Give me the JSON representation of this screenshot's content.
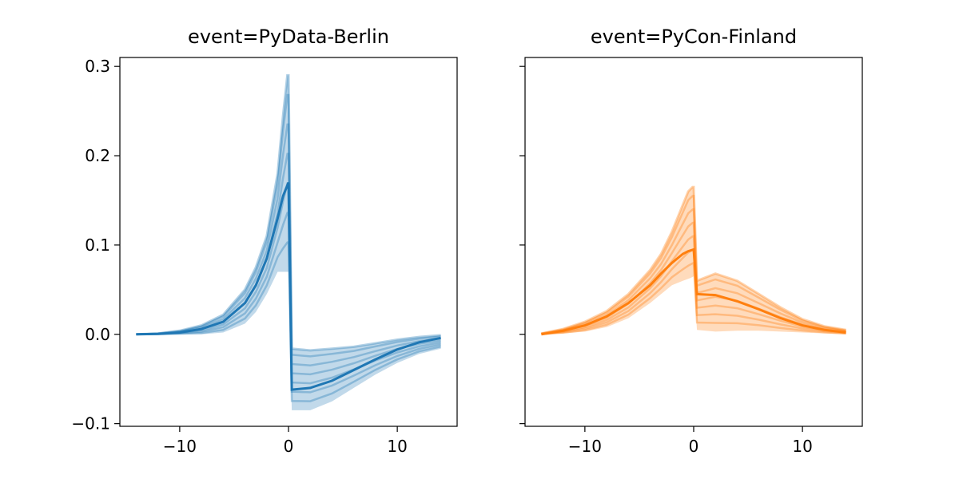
{
  "chart_data": [
    {
      "type": "line",
      "title": "event=PyData-Berlin",
      "xlabel": "",
      "ylabel": "",
      "xlim": [
        -15.5,
        15.5
      ],
      "ylim": [
        -0.103,
        0.31
      ],
      "xticks": [
        -10,
        0,
        10
      ],
      "xtick_labels": [
        "−10",
        "0",
        "10"
      ],
      "yticks": [
        -0.1,
        0.0,
        0.1,
        0.2,
        0.3
      ],
      "ytick_labels": [
        "−0.1",
        "0.0",
        "0.1",
        "0.2",
        "0.3"
      ],
      "grid": false,
      "color": "#1f77b4",
      "mean": {
        "x": [
          -14,
          -12,
          -10,
          -8,
          -6,
          -4,
          -3,
          -2,
          -1,
          -0.5,
          0,
          0.3,
          2,
          4,
          6,
          8,
          10,
          12,
          14
        ],
        "y": [
          0,
          0.0005,
          0.002,
          0.006,
          0.014,
          0.035,
          0.055,
          0.085,
          0.13,
          0.155,
          0.17,
          -0.062,
          -0.06,
          -0.052,
          -0.04,
          -0.028,
          -0.017,
          -0.009,
          -0.004
        ]
      },
      "band_upper": {
        "x": [
          -14,
          -12,
          -10,
          -8,
          -6,
          -4,
          -3,
          -2,
          -1,
          -0.5,
          -0.1,
          0,
          0.3,
          2,
          4,
          6,
          8,
          10,
          12,
          14
        ],
        "y": [
          0,
          0.001,
          0.004,
          0.01,
          0.022,
          0.05,
          0.075,
          0.11,
          0.18,
          0.245,
          0.29,
          0.29,
          -0.016,
          -0.018,
          -0.016,
          -0.014,
          -0.01,
          -0.006,
          -0.003,
          -0.001
        ]
      },
      "band_lower": {
        "x": [
          -14,
          -12,
          -10,
          -8,
          -6,
          -4,
          -3,
          -2,
          -1,
          -0.3,
          0,
          0.3,
          2,
          4,
          6,
          8,
          10,
          12,
          14
        ],
        "y": [
          0,
          0,
          0,
          0,
          0.002,
          0.012,
          0.025,
          0.045,
          0.07,
          0.07,
          0.07,
          -0.085,
          -0.085,
          -0.075,
          -0.06,
          -0.045,
          -0.032,
          -0.022,
          -0.016
        ]
      }
    },
    {
      "type": "line",
      "title": "event=PyCon-Finland",
      "xlabel": "",
      "ylabel": "",
      "xlim": [
        -15.5,
        15.5
      ],
      "ylim": [
        -0.103,
        0.31
      ],
      "xticks": [
        -10,
        0,
        10
      ],
      "xtick_labels": [
        "−10",
        "0",
        "10"
      ],
      "yticks": [
        -0.1,
        0.0,
        0.1,
        0.2,
        0.3
      ],
      "ytick_labels": [],
      "grid": false,
      "color": "#ff7f0e",
      "mean": {
        "x": [
          -14,
          -12,
          -10,
          -8,
          -6,
          -4,
          -3,
          -2,
          -1,
          -0.5,
          0,
          0.3,
          2,
          4,
          6,
          8,
          10,
          12,
          14
        ],
        "y": [
          0,
          0.004,
          0.01,
          0.02,
          0.035,
          0.055,
          0.068,
          0.08,
          0.09,
          0.093,
          0.095,
          0.045,
          0.044,
          0.037,
          0.028,
          0.018,
          0.01,
          0.005,
          0.002
        ]
      },
      "band_upper": {
        "x": [
          -14,
          -12,
          -10,
          -8,
          -6,
          -4,
          -3,
          -2,
          -1,
          -0.5,
          -0.1,
          0,
          0.3,
          2,
          4,
          6,
          8,
          10,
          12,
          14
        ],
        "y": [
          0.001,
          0.006,
          0.014,
          0.026,
          0.045,
          0.072,
          0.09,
          0.115,
          0.145,
          0.16,
          0.165,
          0.165,
          0.06,
          0.068,
          0.06,
          0.045,
          0.03,
          0.017,
          0.009,
          0.005
        ]
      },
      "band_lower": {
        "x": [
          -14,
          -12,
          -10,
          -8,
          -6,
          -4,
          -3,
          -2,
          -1,
          -0.3,
          0,
          0.3,
          2,
          4,
          6,
          8,
          10,
          12,
          14
        ],
        "y": [
          0,
          0.001,
          0.003,
          0.008,
          0.018,
          0.035,
          0.045,
          0.055,
          0.06,
          0.063,
          0.065,
          0.005,
          0.003,
          0.004,
          0.004,
          0.003,
          0.002,
          0.001,
          0
        ]
      }
    }
  ]
}
